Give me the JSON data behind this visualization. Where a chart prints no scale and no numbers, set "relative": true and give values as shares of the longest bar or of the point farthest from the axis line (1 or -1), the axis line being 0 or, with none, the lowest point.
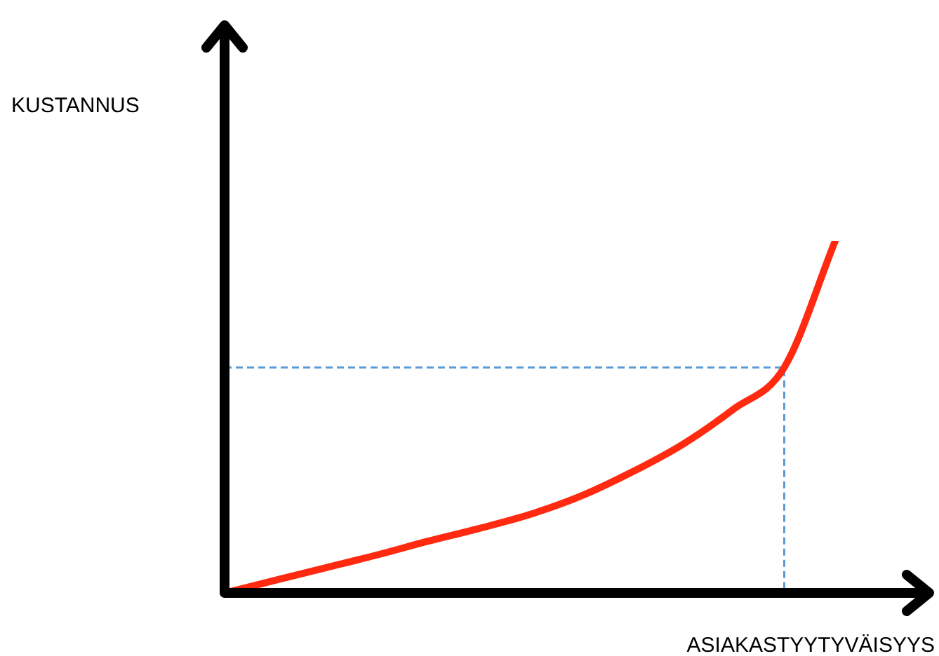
{
  "chart_data": {
    "type": "line",
    "relative": true,
    "xlabel": "ASIAKASTYYTYVÄISYYS",
    "annotations": [
      "KUSTANNUS"
    ],
    "categories": [
      null,
      null,
      null,
      null,
      null,
      null,
      null,
      null,
      null,
      null,
      null,
      null,
      null
    ],
    "series": [
      {
        "color": "#ff2a0f",
        "values": [
          0,
          0.036,
          0.072,
          0.108,
          0.147,
          0.183,
          0.223,
          0.275,
          0.343,
          0.422,
          0.522,
          0.641,
          1
        ]
      }
    ],
    "ref_lines": [
      {
        "axis": "y",
        "value": 0.641,
        "color": "#5b9bd5",
        "line_style": "dashed"
      }
    ],
    "marker": "none",
    "legend": false
  }
}
